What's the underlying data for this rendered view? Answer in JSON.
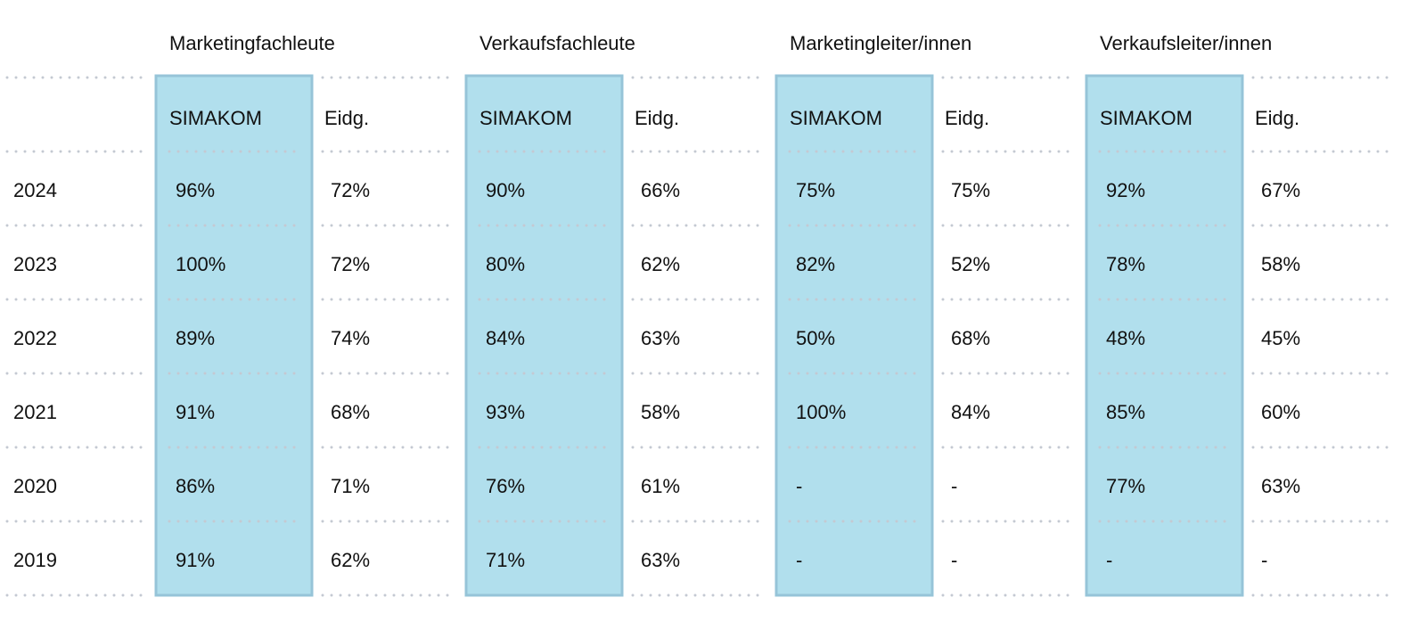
{
  "header": {
    "groups": [
      {
        "title": "Marketingfachleute",
        "subheaders": [
          "SIMAKOM",
          "Eidg."
        ]
      },
      {
        "title": "Verkaufsfachleute",
        "subheaders": [
          "SIMAKOM",
          "Eidg."
        ]
      },
      {
        "title": "Marketingleiter/innen",
        "subheaders": [
          "SIMAKOM",
          "Eidg."
        ]
      },
      {
        "title": "Verkaufsleiter/innen",
        "subheaders": [
          "SIMAKOM",
          "Eidg."
        ]
      }
    ]
  },
  "table": {
    "rows": [
      {
        "year": "2024",
        "cells": [
          "96%",
          "72%",
          "90%",
          "66%",
          "75%",
          "75%",
          "92%",
          "67%"
        ]
      },
      {
        "year": "2023",
        "cells": [
          "100%",
          "72%",
          "80%",
          "62%",
          "82%",
          "52%",
          "78%",
          "58%"
        ]
      },
      {
        "year": "2022",
        "cells": [
          "89%",
          "74%",
          "84%",
          "63%",
          "50%",
          "68%",
          "48%",
          "45%"
        ]
      },
      {
        "year": "2021",
        "cells": [
          "91%",
          "68%",
          "93%",
          "58%",
          "100%",
          "84%",
          "85%",
          "60%"
        ]
      },
      {
        "year": "2020",
        "cells": [
          "86%",
          "71%",
          "76%",
          "61%",
          "-",
          "-",
          "77%",
          "63%"
        ]
      },
      {
        "year": "2019",
        "cells": [
          "91%",
          "62%",
          "71%",
          "63%",
          "-",
          "-",
          "-",
          "-"
        ]
      }
    ]
  }
}
